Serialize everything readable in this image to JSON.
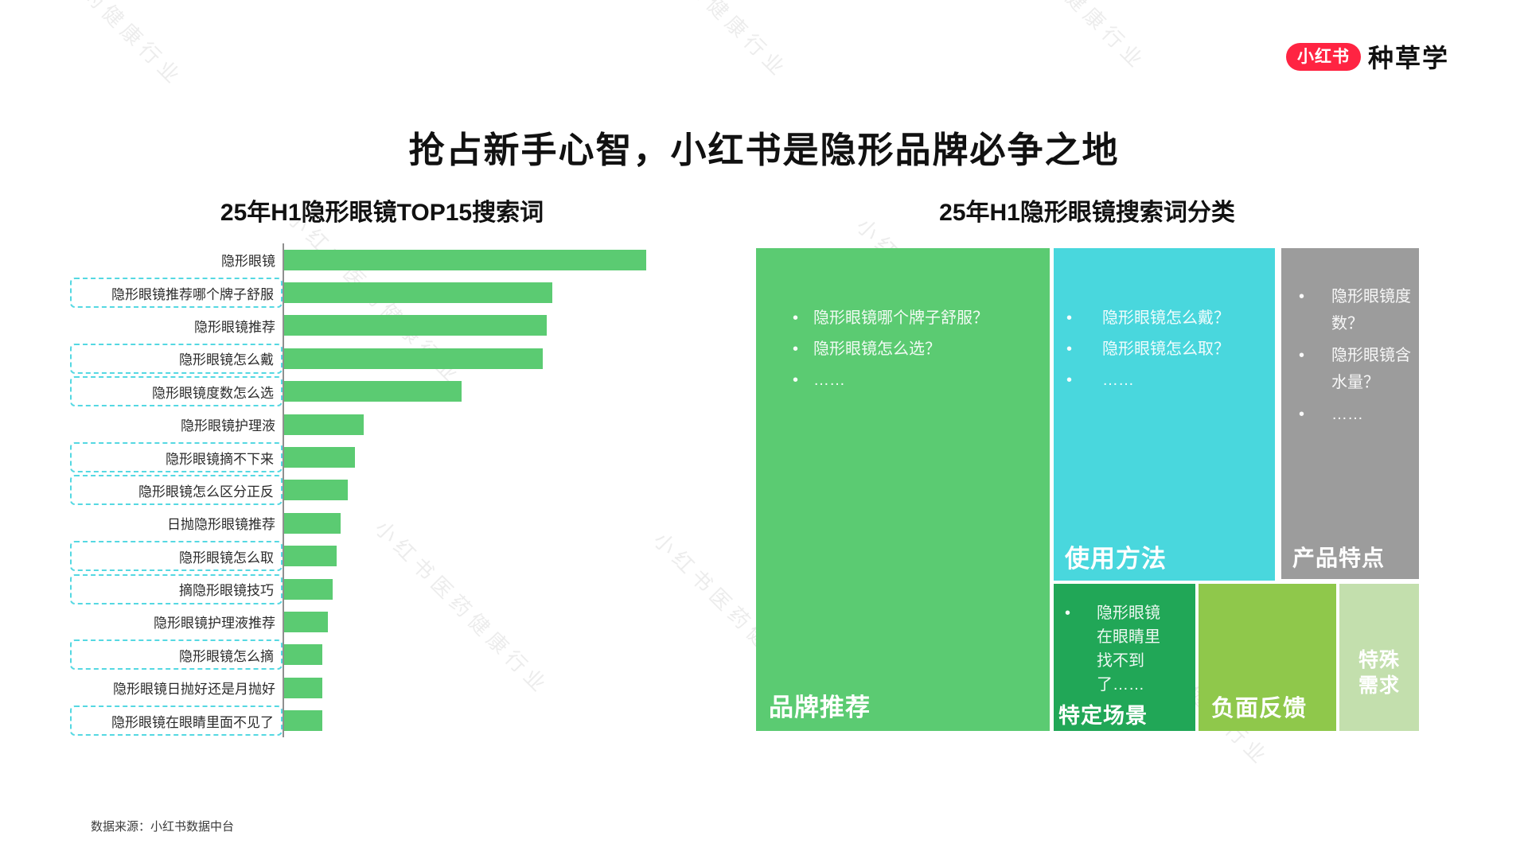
{
  "logo": {
    "badge_text": "小红书",
    "brand_text": "种草学",
    "badge_color": "#ff2442"
  },
  "page_title": "抢占新手心智，小红书是隐形品牌必争之地",
  "watermark_text": "小红书医药健康行业",
  "footer_source": "数据来源：小红书数据中台",
  "colors": {
    "bar_green": "#5bcb72",
    "dashed_box_cyan": "#55d8e2",
    "brand_red": "#ff2442",
    "treemap_brand_green": "#5bcb72",
    "treemap_usage_cyan": "#49d7dd",
    "treemap_product_gray": "#9c9c9c",
    "treemap_scene_dark_green": "#21a757",
    "treemap_negative_apple_green": "#8fc84b",
    "treemap_special_pale_green": "#c3dfad"
  },
  "chart_data": [
    {
      "type": "bar",
      "orientation": "horizontal",
      "title": "25年H1隐形眼镜TOP15搜索词",
      "categories": [
        "隐形眼镜",
        "隐形眼镜推荐哪个牌子舒服",
        "隐形眼镜推荐",
        "隐形眼镜怎么戴",
        "隐形眼镜度数怎么选",
        "隐形眼镜护理液",
        "隐形眼镜摘不下来",
        "隐形眼镜怎么区分正反",
        "日抛隐形眼镜推荐",
        "隐形眼镜怎么取",
        "摘隐形眼镜技巧",
        "隐形眼镜护理液推荐",
        "隐形眼镜怎么摘",
        "隐形眼镜日抛好还是月抛好",
        "隐形眼镜在眼睛里面不见了"
      ],
      "values": [
        100,
        74,
        72.5,
        71.5,
        49,
        22,
        19.5,
        17.5,
        15.5,
        14.5,
        13.5,
        12,
        10.5,
        10.5,
        10.5
      ],
      "value_note": "relative search-volume index estimated from bar lengths; no numeric axis shown",
      "highlighted_dashed_box": [
        false,
        true,
        false,
        true,
        true,
        false,
        true,
        true,
        false,
        true,
        true,
        false,
        true,
        false,
        true
      ],
      "bar_color": "#5bcb72",
      "xlim": [
        0,
        100
      ],
      "grid": false,
      "legend": "none"
    },
    {
      "type": "treemap",
      "title": "25年H1隐形眼镜搜索词分类",
      "cells": [
        {
          "label": "品牌推荐",
          "color": "#5bcb72",
          "area_pct": 45,
          "bullets": [
            "隐形眼镜哪个牌子舒服？",
            "隐形眼镜怎么选？",
            "……"
          ]
        },
        {
          "label": "使用方法",
          "color": "#49d7dd",
          "area_pct": 23.5,
          "bullets": [
            "隐形眼镜怎么戴？",
            "隐形眼镜怎么取？",
            "……"
          ]
        },
        {
          "label": "产品特点",
          "color": "#9c9c9c",
          "area_pct": 14.5,
          "bullets": [
            "隐形眼镜度数？",
            "隐形眼镜含水量？",
            "……"
          ]
        },
        {
          "label": "特定场景",
          "color": "#21a757",
          "area_pct": 6.5,
          "bullets": [
            "隐形眼镜在眼睛里找不到了……"
          ]
        },
        {
          "label": "负面反馈",
          "color": "#8fc84b",
          "area_pct": 6.5,
          "bullets": []
        },
        {
          "label": "特殊需求",
          "color": "#c3dfad",
          "area_pct": 4,
          "bullets": []
        }
      ]
    }
  ]
}
